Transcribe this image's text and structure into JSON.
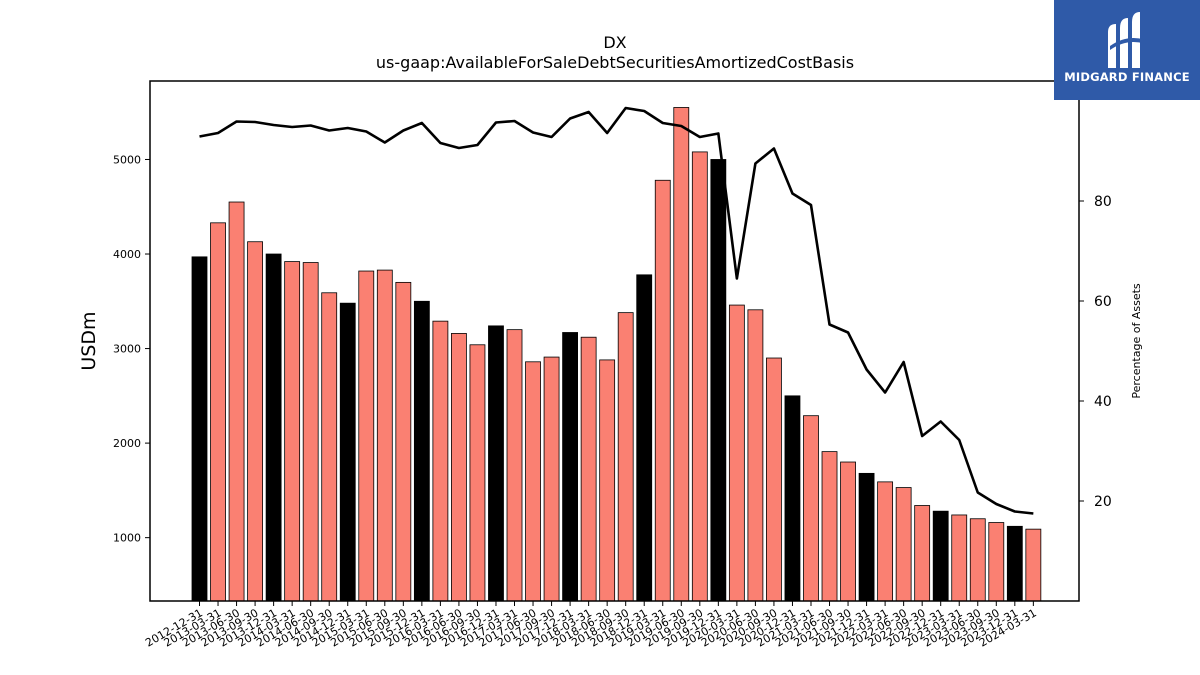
{
  "chart_data": {
    "type": "bar",
    "title": "DX",
    "subtitle": "us-gaap:AvailableForSaleDebtSecuritiesAmortizedCostBasis",
    "ylabel": "USDm",
    "y2label": "Percentage of Assets",
    "ylim": [
      330,
      5830
    ],
    "y2lim": [
      0,
      104
    ],
    "yticks": [
      1000,
      2000,
      3000,
      4000,
      5000
    ],
    "y2ticks": [
      20,
      40,
      60,
      80
    ],
    "grid": false,
    "categories": [
      "2012-12-31",
      "2013-03-31",
      "2013-06-30",
      "2013-09-30",
      "2013-12-31",
      "2014-03-31",
      "2014-06-30",
      "2014-09-30",
      "2014-12-31",
      "2015-03-31",
      "2015-06-30",
      "2015-09-30",
      "2015-12-31",
      "2016-03-31",
      "2016-06-30",
      "2016-09-30",
      "2016-12-31",
      "2017-03-31",
      "2017-06-30",
      "2017-09-30",
      "2017-12-31",
      "2018-03-31",
      "2018-06-30",
      "2018-09-30",
      "2018-12-31",
      "2019-03-31",
      "2019-06-30",
      "2019-09-30",
      "2019-12-31",
      "2020-03-31",
      "2020-06-30",
      "2020-09-30",
      "2020-12-31",
      "2021-03-31",
      "2021-06-30",
      "2021-09-30",
      "2021-12-31",
      "2022-03-31",
      "2022-06-30",
      "2022-09-30",
      "2022-12-31",
      "2023-03-31",
      "2023-06-30",
      "2023-09-30",
      "2023-12-31",
      "2024-03-31"
    ],
    "series": [
      {
        "type": "bar",
        "values": [
          3970,
          4330,
          4550,
          4130,
          4000,
          3920,
          3910,
          3590,
          3480,
          3820,
          3830,
          3700,
          3500,
          3290,
          3160,
          3040,
          3240,
          3200,
          2860,
          2910,
          3170,
          3120,
          2880,
          3380,
          3780,
          4780,
          5550,
          5080,
          5000,
          3460,
          3410,
          2900,
          2500,
          2290,
          1910,
          1800,
          1680,
          1590,
          1530,
          1340,
          1280,
          1240,
          1200,
          1160,
          1120,
          1090
        ],
        "highlight_every": 4,
        "colors": {
          "normal": "#fa8072",
          "highlight": "#000000"
        }
      },
      {
        "type": "line",
        "axis": "right",
        "color": "#000000",
        "values": [
          92.9,
          93.6,
          95.9,
          95.8,
          95.2,
          94.8,
          95.1,
          94.1,
          94.6,
          93.9,
          91.7,
          94.1,
          95.6,
          91.6,
          90.6,
          91.2,
          95.7,
          96.0,
          93.7,
          92.8,
          96.5,
          97.8,
          93.6,
          98.6,
          98.0,
          95.6,
          95.0,
          92.8,
          93.5,
          64.5,
          87.5,
          90.5,
          81.5,
          79.2,
          55.3,
          53.7,
          46.3,
          41.7,
          47.8,
          33.0,
          35.9,
          32.2,
          21.7,
          19.4,
          17.9,
          17.5
        ]
      }
    ]
  },
  "logo": {
    "text": "MIDGARD FINANCE"
  }
}
